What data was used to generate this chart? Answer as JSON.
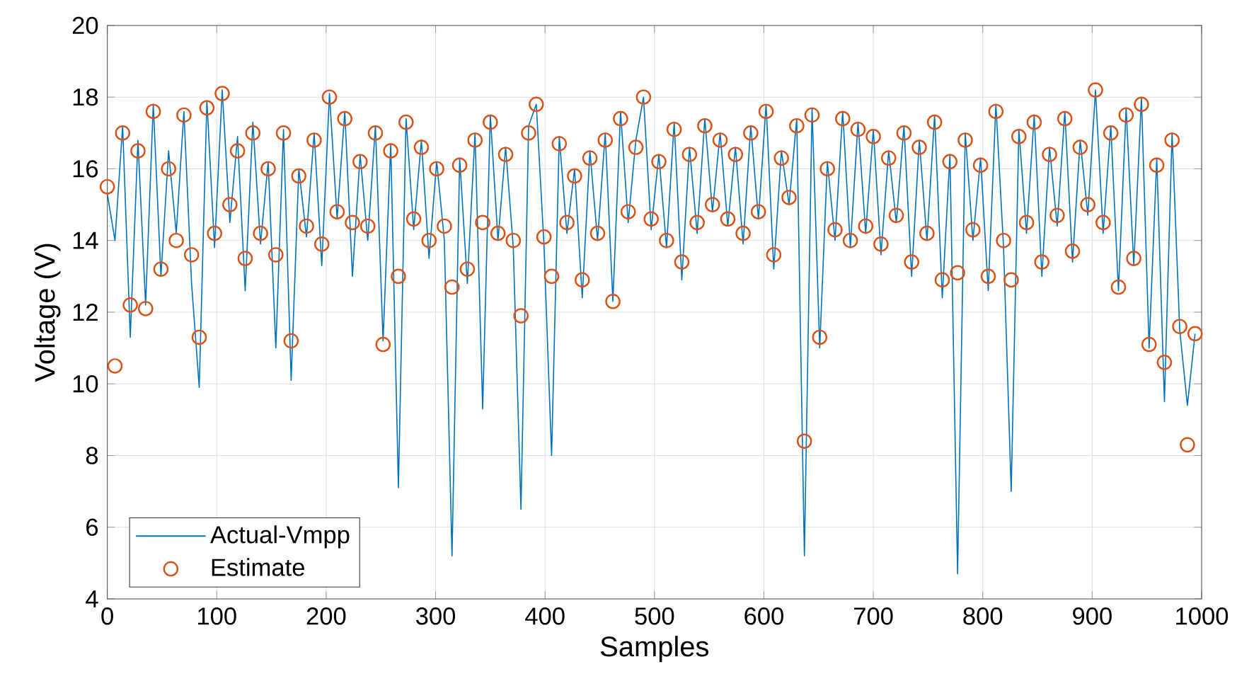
{
  "chart_data": {
    "type": "line",
    "xlabel": "Samples",
    "ylabel": "Voltage (V)",
    "xlim": [
      0,
      1000
    ],
    "ylim": [
      4,
      20
    ],
    "xticks": [
      0,
      100,
      200,
      300,
      400,
      500,
      600,
      700,
      800,
      900,
      1000
    ],
    "yticks": [
      4,
      6,
      8,
      10,
      12,
      14,
      16,
      18,
      20
    ],
    "grid": true,
    "legend": "bottom left",
    "x": [
      0,
      7,
      14,
      21,
      28,
      35,
      42,
      49,
      56,
      63,
      70,
      77,
      84,
      91,
      98,
      105,
      112,
      119,
      126,
      133,
      140,
      147,
      154,
      161,
      168,
      175,
      182,
      189,
      196,
      203,
      210,
      217,
      224,
      231,
      238,
      245,
      252,
      259,
      266,
      273,
      280,
      287,
      294,
      301,
      308,
      315,
      322,
      329,
      336,
      343,
      350,
      357,
      364,
      371,
      378,
      385,
      392,
      399,
      406,
      413,
      420,
      427,
      434,
      441,
      448,
      455,
      462,
      469,
      476,
      483,
      490,
      497,
      504,
      511,
      518,
      525,
      532,
      539,
      546,
      553,
      560,
      567,
      574,
      581,
      588,
      595,
      602,
      609,
      616,
      623,
      630,
      637,
      644,
      651,
      658,
      665,
      672,
      679,
      686,
      693,
      700,
      707,
      714,
      721,
      728,
      735,
      742,
      749,
      756,
      763,
      770,
      777,
      784,
      791,
      798,
      805,
      812,
      819,
      826,
      833,
      840,
      847,
      854,
      861,
      868,
      875,
      882,
      889,
      896,
      903,
      910,
      917,
      924,
      931,
      938,
      945,
      952,
      959,
      966,
      973,
      980,
      987,
      994
    ],
    "series": [
      {
        "name": "Actual-Vmpp",
        "marker": "none",
        "line_style": "solid",
        "color": "#0072bd",
        "values": [
          15.3,
          14.0,
          17.2,
          11.3,
          16.8,
          12.2,
          17.8,
          13.0,
          16.5,
          14.2,
          17.6,
          12.8,
          9.9,
          17.9,
          13.8,
          18.2,
          14.5,
          16.9,
          12.6,
          17.3,
          13.9,
          16.2,
          11.0,
          17.1,
          10.1,
          16.0,
          14.1,
          17.0,
          13.3,
          18.1,
          14.6,
          17.6,
          13.0,
          16.4,
          14.0,
          17.2,
          11.2,
          16.7,
          7.1,
          17.4,
          14.3,
          16.8,
          13.5,
          16.2,
          14.0,
          5.2,
          16.3,
          12.8,
          17.0,
          9.3,
          17.5,
          14.0,
          16.6,
          13.8,
          6.5,
          17.2,
          17.8,
          13.9,
          8.0,
          16.9,
          14.2,
          16.0,
          12.4,
          16.5,
          14.0,
          17.0,
          12.3,
          17.6,
          14.5,
          16.8,
          18.0,
          14.3,
          16.4,
          13.8,
          17.3,
          12.9,
          16.6,
          14.2,
          17.4,
          14.8,
          17.0,
          14.4,
          16.6,
          13.9,
          17.2,
          14.6,
          17.8,
          13.2,
          16.5,
          15.0,
          17.4,
          5.2,
          17.7,
          11.0,
          16.2,
          14.0,
          17.6,
          13.8,
          17.3,
          14.2,
          17.1,
          13.6,
          16.5,
          14.5,
          17.2,
          13.0,
          16.8,
          14.0,
          17.5,
          12.4,
          16.4,
          4.7,
          17.0,
          14.0,
          16.3,
          12.6,
          17.8,
          13.8,
          7.0,
          17.1,
          14.2,
          17.5,
          13.0,
          16.6,
          14.4,
          17.6,
          13.4,
          16.8,
          14.7,
          18.2,
          14.2,
          17.2,
          12.6,
          17.7,
          13.3,
          18.0,
          11.0,
          16.3,
          9.5,
          17.0,
          11.5,
          9.4,
          11.4
        ]
      },
      {
        "name": "Estimate",
        "type": "scatter",
        "marker": "circle",
        "color": "#d95319",
        "values": [
          15.5,
          10.5,
          17.0,
          12.2,
          16.5,
          12.1,
          17.6,
          13.2,
          16.0,
          14.0,
          17.5,
          13.6,
          11.3,
          17.7,
          14.2,
          18.1,
          15.0,
          16.5,
          13.5,
          17.0,
          14.2,
          16.0,
          13.6,
          17.0,
          11.2,
          15.8,
          14.4,
          16.8,
          13.9,
          18.0,
          14.8,
          17.4,
          14.5,
          16.2,
          14.4,
          17.0,
          11.1,
          16.5,
          13.0,
          17.3,
          14.6,
          16.6,
          14.0,
          16.0,
          14.4,
          12.7,
          16.1,
          13.2,
          16.8,
          14.5,
          17.3,
          14.2,
          16.4,
          14.0,
          11.9,
          17.0,
          17.8,
          14.1,
          13.0,
          16.7,
          14.5,
          15.8,
          12.9,
          16.3,
          14.2,
          16.8,
          12.3,
          17.4,
          14.8,
          16.6,
          18.0,
          14.6,
          16.2,
          14.0,
          17.1,
          13.4,
          16.4,
          14.5,
          17.2,
          15.0,
          16.8,
          14.6,
          16.4,
          14.2,
          17.0,
          14.8,
          17.6,
          13.6,
          16.3,
          15.2,
          17.2,
          8.4,
          17.5,
          11.3,
          16.0,
          14.3,
          17.4,
          14.0,
          17.1,
          14.4,
          16.9,
          13.9,
          16.3,
          14.7,
          17.0,
          13.4,
          16.6,
          14.2,
          17.3,
          12.9,
          16.2,
          13.1,
          16.8,
          14.3,
          16.1,
          13.0,
          17.6,
          14.0,
          12.9,
          16.9,
          14.5,
          17.3,
          13.4,
          16.4,
          14.7,
          17.4,
          13.7,
          16.6,
          15.0,
          18.2,
          14.5,
          17.0,
          12.7,
          17.5,
          13.5,
          17.8,
          11.1,
          16.1,
          10.6,
          16.8,
          11.6,
          8.3,
          11.4
        ]
      }
    ]
  }
}
